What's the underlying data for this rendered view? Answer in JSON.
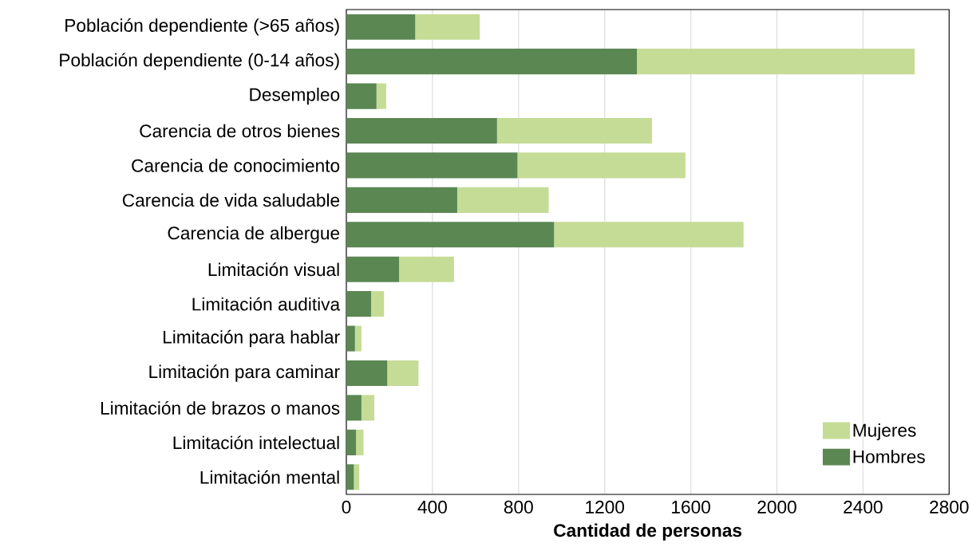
{
  "chart_data": {
    "type": "bar",
    "orientation": "horizontal",
    "stacked": true,
    "xlabel": "Cantidad de personas",
    "categories": [
      "Población dependiente (>65 años)",
      "Población dependiente (0-14 años)",
      "Desempleo",
      "Carencia de otros bienes",
      "Carencia de conocimiento",
      "Carencia de vida saludable",
      "Carencia de albergue",
      "Limitación visual",
      "Limitación auditiva",
      "Limitación para hablar",
      "Limitación para caminar",
      "Limitación de brazos o manos",
      "Limitación intelectual",
      "Limitación mental"
    ],
    "series": [
      {
        "name": "Hombres",
        "color": "#5b8752",
        "values": [
          320,
          1350,
          140,
          700,
          795,
          515,
          965,
          245,
          115,
          40,
          190,
          70,
          45,
          35
        ]
      },
      {
        "name": "Mujeres",
        "color": "#c5dc96",
        "values": [
          300,
          1290,
          45,
          720,
          780,
          425,
          880,
          255,
          60,
          30,
          145,
          60,
          35,
          25
        ]
      }
    ],
    "xlim": [
      0,
      2800
    ],
    "xticks": [
      0,
      400,
      800,
      1200,
      1600,
      2000,
      2400,
      2800
    ],
    "grid": "x",
    "legend": "bottom right"
  }
}
